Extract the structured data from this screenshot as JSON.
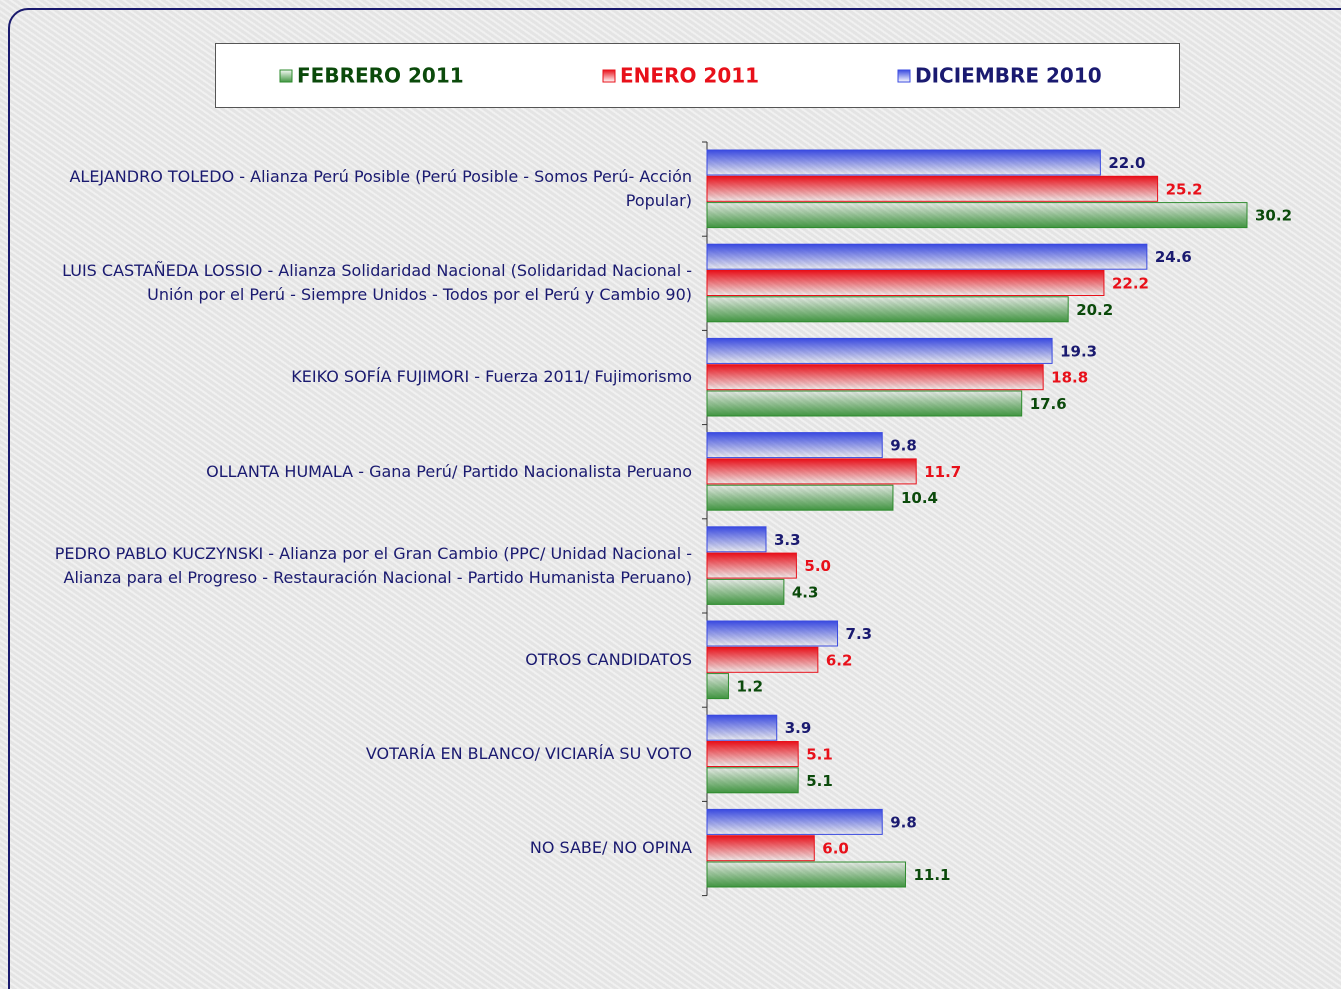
{
  "chart_data": {
    "type": "barh",
    "categories": [
      "ALEJANDRO TOLEDO - Alianza Perú Posible (Perú Posible - Somos Perú- Acción Popular)",
      "LUIS CASTAÑEDA LOSSIO - Alianza Solidaridad Nacional (Solidaridad Nacional - Unión por el Perú - Siempre Unidos - Todos por el Perú y Cambio 90)",
      "KEIKO SOFÍA FUJIMORI - Fuerza 2011/ Fujimorismo",
      "OLLANTA HUMALA - Gana Perú/ Partido Nacionalista Peruano",
      "PEDRO PABLO KUCZYNSKI - Alianza por el Gran Cambio (PPC/ Unidad Nacional - Alianza para el Progreso - Restauración Nacional - Partido Humanista Peruano)",
      "OTROS CANDIDATOS",
      "VOTARÍA EN BLANCO/ VICIARÍA SU VOTO",
      "NO SABE/ NO OPINA"
    ],
    "series": [
      {
        "name": "FEBRERO 2011",
        "color": "#2e8b2e",
        "label_color": "#0b4a0b",
        "values": [
          30.2,
          20.2,
          17.6,
          10.4,
          4.3,
          1.2,
          5.1,
          11.1
        ],
        "value_labels": [
          "30.2",
          "20.2",
          "17.6",
          "10.4",
          "4.3",
          "1.2",
          "5.1",
          "11.1"
        ]
      },
      {
        "name": "ENERO 2011",
        "color": "#e8101a",
        "label_color": "#e8101a",
        "values": [
          25.2,
          22.2,
          18.8,
          11.7,
          5.0,
          6.2,
          5.1,
          6.0
        ],
        "value_labels": [
          "25.2",
          "22.2",
          "18.8",
          "11.7",
          "5.0",
          "6.2",
          "5.1",
          "6.0"
        ]
      },
      {
        "name": "DICIEMBRE 2010",
        "color": "#3a4ae0",
        "label_color": "#1a1a70",
        "values": [
          22.0,
          24.6,
          19.3,
          9.8,
          3.3,
          7.3,
          3.9,
          9.8
        ],
        "value_labels": [
          "22.0",
          "24.6",
          "19.3",
          "9.8",
          "3.3",
          "7.3",
          "3.9",
          "9.8"
        ]
      }
    ]
  }
}
